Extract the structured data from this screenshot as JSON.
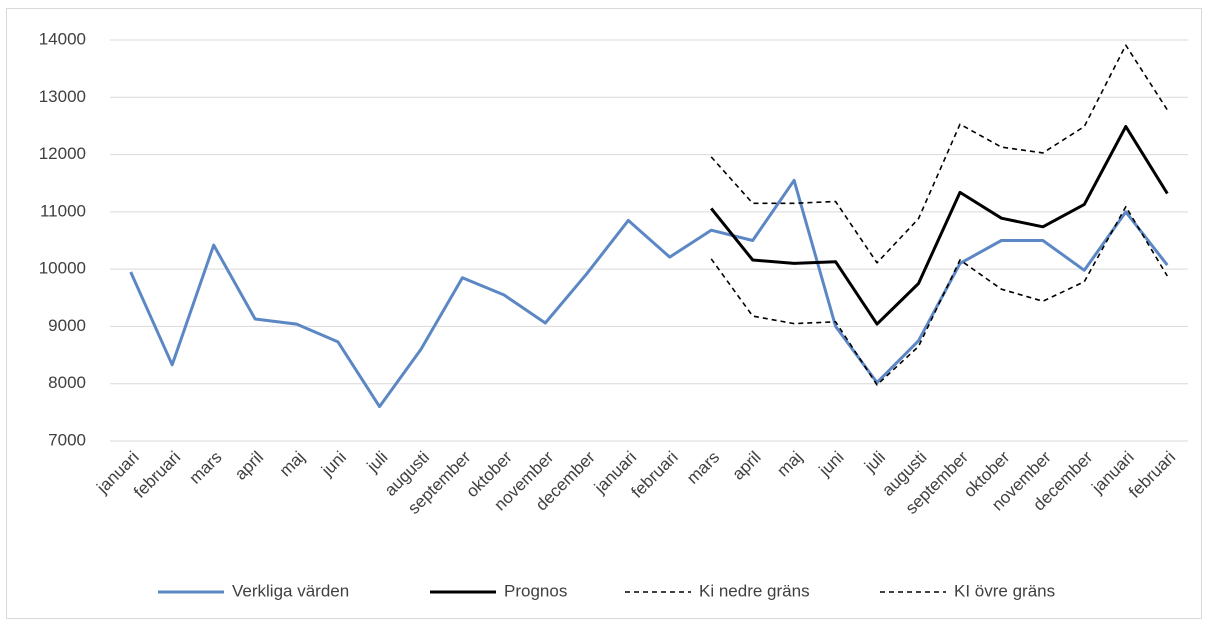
{
  "chart_data": {
    "type": "line",
    "categories": [
      "januari",
      "februari",
      "mars",
      "april",
      "maj",
      "juni",
      "juli",
      "augusti",
      "september",
      "oktober",
      "november",
      "december",
      "januari",
      "februari",
      "mars",
      "april",
      "maj",
      "juni",
      "juli",
      "augusti",
      "september",
      "oktober",
      "november",
      "december",
      "januari",
      "februari"
    ],
    "series": [
      {
        "name": "Verkliga värden",
        "color": "#5b87c5",
        "dash": false,
        "values": [
          9950,
          8330,
          10420,
          9130,
          9040,
          8730,
          7600,
          8600,
          9850,
          9550,
          9060,
          9920,
          10850,
          10210,
          10680,
          10500,
          11550,
          9000,
          8020,
          8750,
          10100,
          10500,
          10500,
          9980,
          11000,
          10070
        ]
      },
      {
        "name": "Prognos",
        "color": "#000000",
        "dash": false,
        "values": [
          null,
          null,
          null,
          null,
          null,
          null,
          null,
          null,
          null,
          null,
          null,
          null,
          null,
          null,
          11060,
          10160,
          10100,
          10130,
          9040,
          9750,
          11340,
          10890,
          10740,
          11130,
          12490,
          11320
        ]
      },
      {
        "name": "Ki nedre gräns",
        "color": "#000000",
        "dash": true,
        "values": [
          null,
          null,
          null,
          null,
          null,
          null,
          null,
          null,
          null,
          null,
          null,
          null,
          null,
          null,
          10180,
          9180,
          9050,
          9080,
          7980,
          8650,
          10160,
          9650,
          9440,
          9780,
          11090,
          9880
        ]
      },
      {
        "name": "KI övre gräns",
        "color": "#000000",
        "dash": true,
        "values": [
          null,
          null,
          null,
          null,
          null,
          null,
          null,
          null,
          null,
          null,
          null,
          null,
          null,
          null,
          11960,
          11150,
          11150,
          11180,
          10110,
          10880,
          12530,
          12130,
          12030,
          12490,
          13910,
          12780
        ]
      }
    ],
    "ylim": [
      7000,
      14000
    ],
    "yticks": [
      7000,
      8000,
      9000,
      10000,
      11000,
      12000,
      13000,
      14000
    ],
    "grid": true,
    "legend": "bottom"
  }
}
